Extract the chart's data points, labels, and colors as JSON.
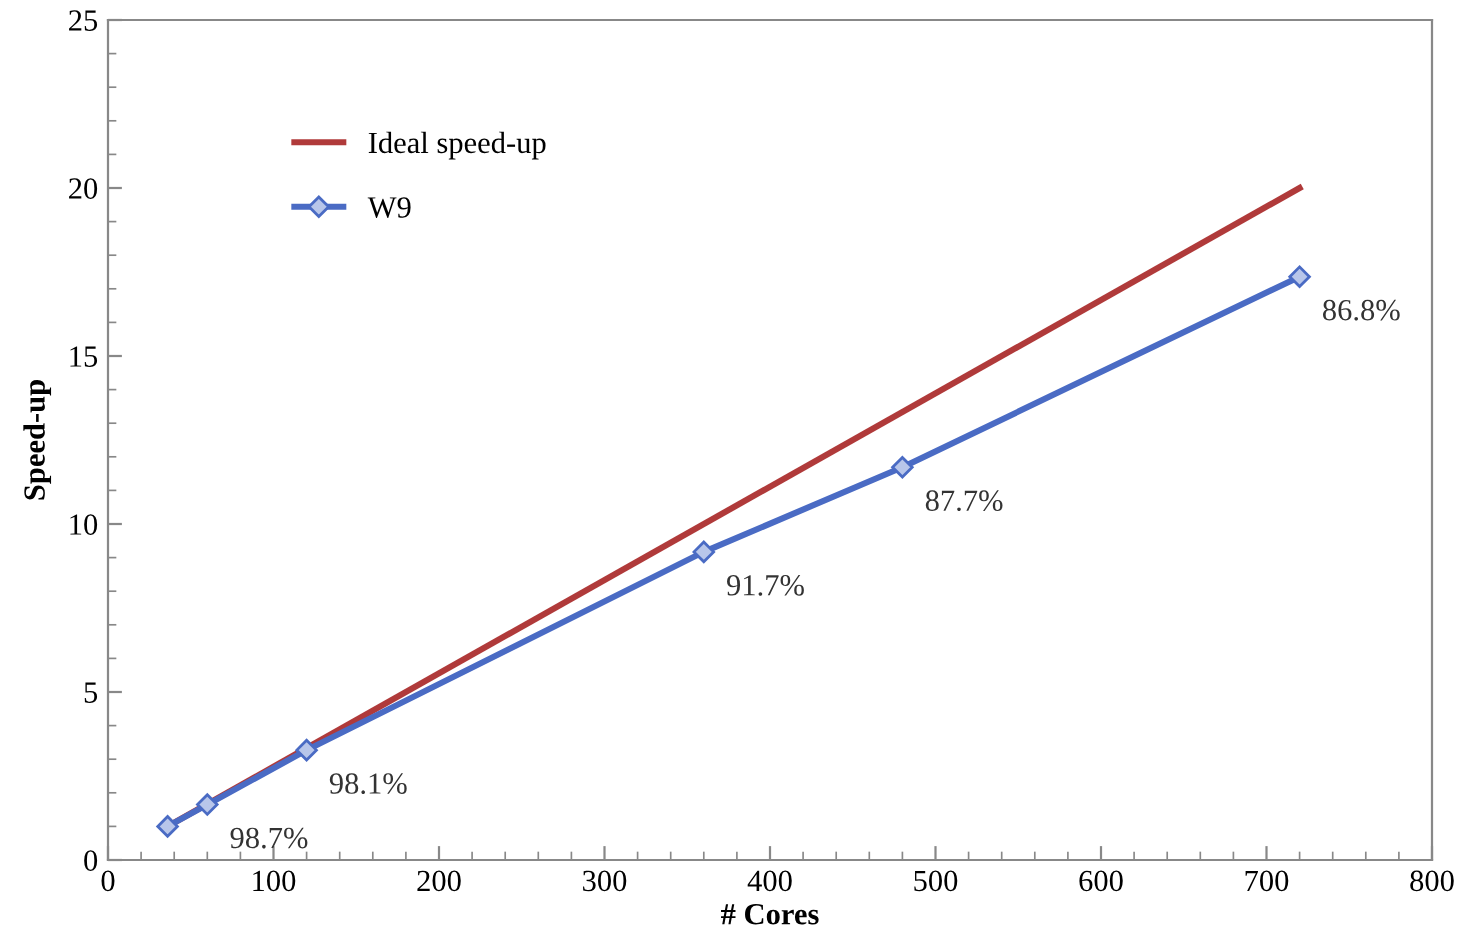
{
  "chart_data": {
    "type": "line",
    "xlabel": "# Cores",
    "ylabel": "Speed-up",
    "xlim": [
      0,
      800
    ],
    "xticks": [
      0,
      100,
      200,
      300,
      400,
      500,
      600,
      700,
      800
    ],
    "ylim": [
      0,
      25
    ],
    "yticks": [
      0,
      5,
      10,
      15,
      20,
      25
    ],
    "grid": false,
    "legend": "top left",
    "series": [
      {
        "name": "Ideal speed-up",
        "color": "#b03a3a",
        "x": [
          36,
          720
        ],
        "values": [
          1,
          20
        ],
        "marker": "none"
      },
      {
        "name": "W9",
        "color": "#4a6bc4",
        "x": [
          36,
          60,
          120,
          360,
          480,
          720
        ],
        "values": [
          1,
          1.65,
          3.27,
          9.17,
          11.69,
          17.36
        ],
        "marker": "diamond"
      }
    ],
    "annotations": [
      {
        "text": "98.7%",
        "x": 60,
        "y": 1.65
      },
      {
        "text": "98.1%",
        "x": 120,
        "y": 3.27
      },
      {
        "text": "91.7%",
        "x": 360,
        "y": 9.17
      },
      {
        "text": "87.7%",
        "x": 480,
        "y": 11.69
      },
      {
        "text": "86.8%",
        "x": 720,
        "y": 17.36
      }
    ]
  }
}
